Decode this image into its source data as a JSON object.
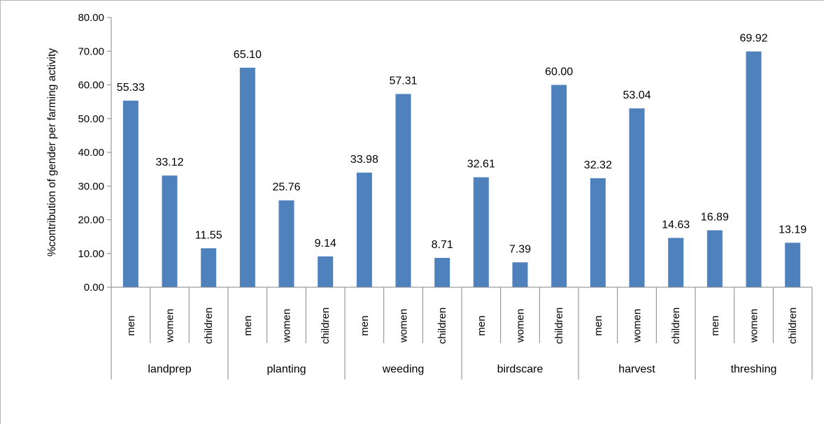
{
  "chart_data": {
    "type": "bar",
    "ylabel": "%contribution of gender per farming activity",
    "ylim": [
      0,
      80
    ],
    "ytick_values": [
      0,
      10,
      20,
      30,
      40,
      50,
      60,
      70,
      80
    ],
    "ytick_labels": [
      "0.00",
      "10.00",
      "20.00",
      "30.00",
      "40.00",
      "50.00",
      "60.00",
      "70.00",
      "80.00"
    ],
    "groups": [
      "landprep",
      "planting",
      "weeding",
      "birdscare",
      "harvest",
      "threshing"
    ],
    "categories": [
      "men",
      "women",
      "children"
    ],
    "values": [
      [
        55.33,
        33.12,
        11.55
      ],
      [
        65.1,
        25.76,
        9.14
      ],
      [
        33.98,
        57.31,
        8.71
      ],
      [
        32.61,
        7.39,
        60.0
      ],
      [
        32.32,
        53.04,
        14.63
      ],
      [
        16.89,
        69.92,
        13.19
      ]
    ],
    "data_labels": [
      [
        "55.33",
        "33.12",
        "11.55"
      ],
      [
        "65.10",
        "25.76",
        "9.14"
      ],
      [
        "33.98",
        "57.31",
        "8.71"
      ],
      [
        "32.61",
        "7.39",
        "60.00"
      ],
      [
        "32.32",
        "53.04",
        "14.63"
      ],
      [
        "16.89",
        "69.92",
        "13.19"
      ]
    ],
    "bar_color": "#4f81bd",
    "axis_color": "#868686",
    "grid": false,
    "legend": "none"
  }
}
